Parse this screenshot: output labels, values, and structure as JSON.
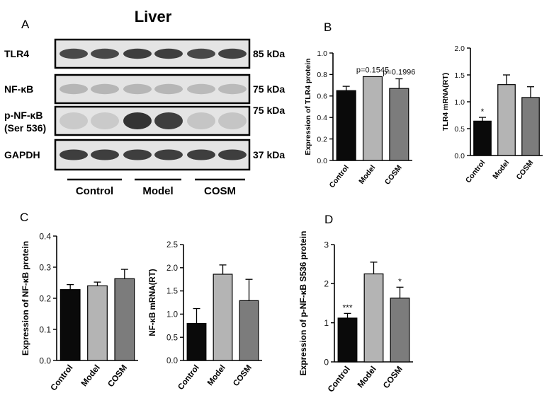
{
  "panel_letters": {
    "a": "A",
    "b": "B",
    "c": "C",
    "d": "D"
  },
  "blot": {
    "title": "Liver",
    "rows": [
      {
        "label": [
          "TLR4"
        ],
        "kda": "85 kDa"
      },
      {
        "label": [
          "NF-κB"
        ],
        "kda": "75 kDa"
      },
      {
        "label": [
          "p-NF-κB",
          "(Ser 536)"
        ],
        "kda": "75 kDa"
      },
      {
        "label": [
          "GAPDH"
        ],
        "kda": "37 kDa"
      }
    ],
    "groups": [
      "Control",
      "Model",
      "COSM"
    ]
  },
  "colors": {
    "control": "#0a0a0a",
    "model": "#b4b4b4",
    "cosm": "#7c7c7c"
  },
  "chart_data": [
    {
      "id": "b1",
      "type": "bar",
      "title": "",
      "ylabel": "Expression of TLR4 protein",
      "xlabel": "",
      "categories": [
        "Control",
        "Model",
        "COSM"
      ],
      "values": [
        0.65,
        0.78,
        0.67
      ],
      "errors": [
        0.04,
        0.0,
        0.09
      ],
      "ylim": [
        0,
        1.0
      ],
      "yticks": [
        0.0,
        0.2,
        0.4,
        0.6,
        0.8,
        1.0
      ],
      "ytick_labels": [
        "0.0",
        "0.2",
        "0.4",
        "0.6",
        "0.8",
        "1.0"
      ],
      "annotations": [
        "",
        "p=0.1545",
        "p=0.1996"
      ]
    },
    {
      "id": "b2",
      "type": "bar",
      "title": "",
      "ylabel": "TLR4 mRNA(RT)",
      "xlabel": "",
      "categories": [
        "Control",
        "Model",
        "COSM"
      ],
      "values": [
        0.64,
        1.32,
        1.08
      ],
      "errors": [
        0.07,
        0.18,
        0.2
      ],
      "ylim": [
        0,
        2.0
      ],
      "yticks": [
        0.0,
        0.5,
        1.0,
        1.5,
        2.0
      ],
      "ytick_labels": [
        "0.0",
        "0.5",
        "1.0",
        "1.5",
        "2.0"
      ],
      "annotations": [
        "*",
        "",
        ""
      ]
    },
    {
      "id": "c1",
      "type": "bar",
      "title": "",
      "ylabel": "Expression of NF-κB protein",
      "xlabel": "",
      "categories": [
        "Control",
        "Model",
        "COSM"
      ],
      "values": [
        0.228,
        0.24,
        0.263
      ],
      "errors": [
        0.016,
        0.012,
        0.03
      ],
      "ylim": [
        0,
        0.4
      ],
      "yticks": [
        0.0,
        0.1,
        0.2,
        0.3,
        0.4
      ],
      "ytick_labels": [
        "0.0",
        "0.1",
        "0.2",
        "0.3",
        "0.4"
      ],
      "annotations": [
        "",
        "",
        ""
      ]
    },
    {
      "id": "c2",
      "type": "bar",
      "title": "",
      "ylabel": "NF-κB mRNA(RT)",
      "xlabel": "",
      "categories": [
        "Control",
        "Model",
        "COSM"
      ],
      "values": [
        0.8,
        1.86,
        1.29
      ],
      "errors": [
        0.32,
        0.2,
        0.46
      ],
      "ylim": [
        0,
        2.5
      ],
      "yticks": [
        0.0,
        0.5,
        1.0,
        1.5,
        2.0,
        2.5
      ],
      "ytick_labels": [
        "0.0",
        "0.5",
        "1.0",
        "1.5",
        "2.0",
        "2.5"
      ],
      "annotations": [
        "",
        "",
        ""
      ]
    },
    {
      "id": "d1",
      "type": "bar",
      "title": "",
      "ylabel": "Expression of p-NF-κB S536 protein",
      "xlabel": "",
      "categories": [
        "Control",
        "Model",
        "COSM"
      ],
      "values": [
        1.12,
        2.25,
        1.63
      ],
      "errors": [
        0.12,
        0.3,
        0.28
      ],
      "ylim": [
        0,
        3
      ],
      "yticks": [
        0,
        1,
        2,
        3
      ],
      "ytick_labels": [
        "0",
        "1",
        "2",
        "3"
      ],
      "annotations": [
        "***",
        "",
        "*"
      ]
    }
  ]
}
